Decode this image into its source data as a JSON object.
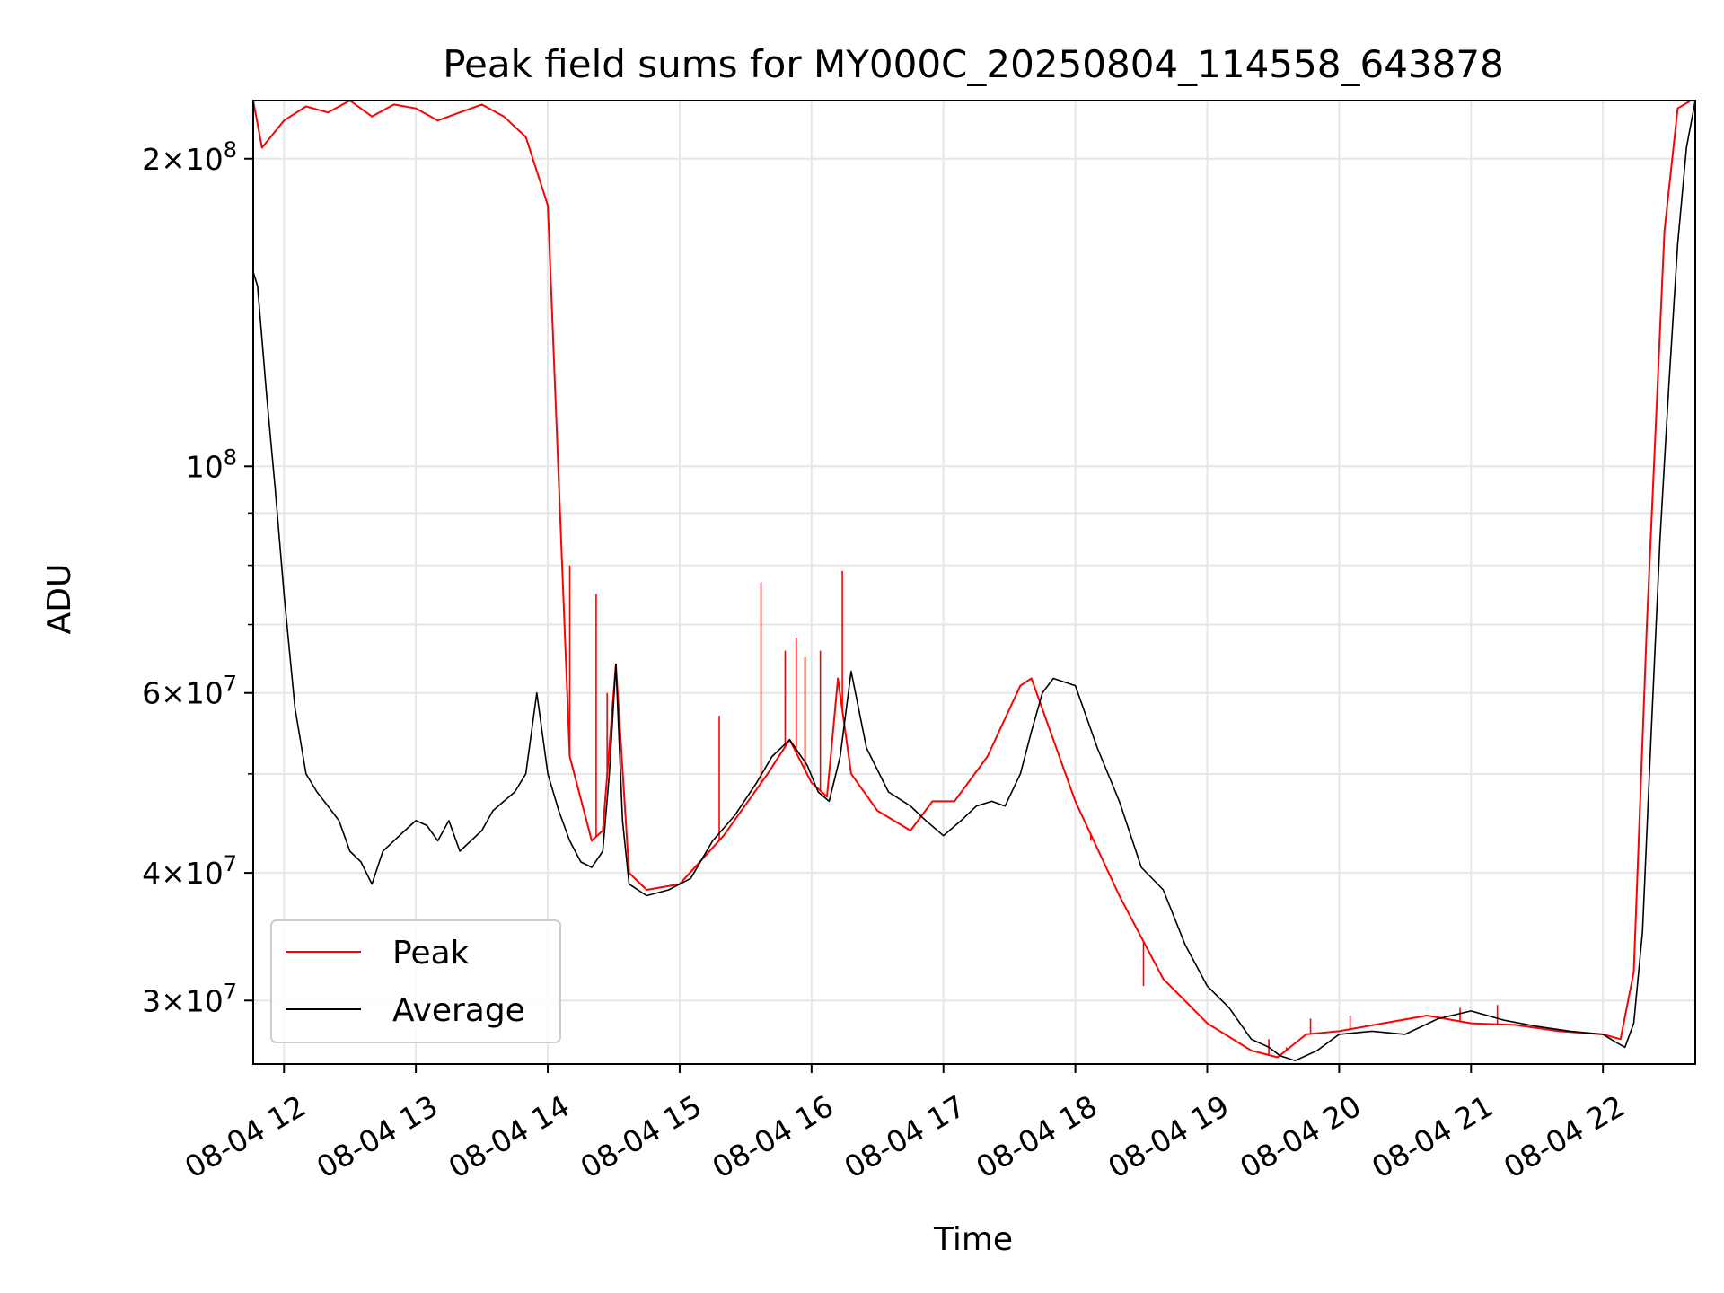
{
  "chart_data": {
    "type": "line",
    "title": "Peak field sums for MY000C_20250804_114558_643878",
    "xlabel": "Time",
    "ylabel": "ADU",
    "yscale": "log",
    "xlim": [
      "2025-08-04T11:46",
      "2025-08-04T22:42"
    ],
    "ylim": [
      26000000,
      228000000
    ],
    "grid": true,
    "legend_position": "lower-left",
    "x_ticks": [
      {
        "value": "2025-08-04T12:00",
        "label": "08-04 12"
      },
      {
        "value": "2025-08-04T13:00",
        "label": "08-04 13"
      },
      {
        "value": "2025-08-04T14:00",
        "label": "08-04 14"
      },
      {
        "value": "2025-08-04T15:00",
        "label": "08-04 15"
      },
      {
        "value": "2025-08-04T16:00",
        "label": "08-04 16"
      },
      {
        "value": "2025-08-04T17:00",
        "label": "08-04 17"
      },
      {
        "value": "2025-08-04T18:00",
        "label": "08-04 18"
      },
      {
        "value": "2025-08-04T19:00",
        "label": "08-04 19"
      },
      {
        "value": "2025-08-04T20:00",
        "label": "08-04 20"
      },
      {
        "value": "2025-08-04T21:00",
        "label": "08-04 21"
      },
      {
        "value": "2025-08-04T22:00",
        "label": "08-04 22"
      }
    ],
    "y_ticks_major": [
      {
        "value": 30000000,
        "mant": "3",
        "exp": "7"
      },
      {
        "value": 40000000,
        "mant": "4",
        "exp": "7"
      },
      {
        "value": 60000000,
        "mant": "6",
        "exp": "7"
      },
      {
        "value": 100000000,
        "mant": "",
        "exp": "8"
      },
      {
        "value": 200000000,
        "mant": "2",
        "exp": "8"
      }
    ],
    "y_ticks_minor": [
      50000000,
      70000000,
      80000000,
      90000000
    ],
    "series": [
      {
        "name": "Peak",
        "color": "#ff0000",
        "x": [
          "2025-08-04T11:46",
          "2025-08-04T11:50",
          "2025-08-04T12:00",
          "2025-08-04T12:10",
          "2025-08-04T12:20",
          "2025-08-04T12:30",
          "2025-08-04T12:40",
          "2025-08-04T12:50",
          "2025-08-04T13:00",
          "2025-08-04T13:10",
          "2025-08-04T13:20",
          "2025-08-04T13:30",
          "2025-08-04T13:40",
          "2025-08-04T13:50",
          "2025-08-04T14:00",
          "2025-08-04T14:10",
          "2025-08-04T14:20",
          "2025-08-04T14:25",
          "2025-08-04T14:31",
          "2025-08-04T14:37",
          "2025-08-04T14:45",
          "2025-08-04T15:00",
          "2025-08-04T15:20",
          "2025-08-04T15:40",
          "2025-08-04T15:50",
          "2025-08-04T16:00",
          "2025-08-04T16:07",
          "2025-08-04T16:12",
          "2025-08-04T16:18",
          "2025-08-04T16:30",
          "2025-08-04T16:45",
          "2025-08-04T16:55",
          "2025-08-04T17:05",
          "2025-08-04T17:20",
          "2025-08-04T17:35",
          "2025-08-04T17:40",
          "2025-08-04T17:50",
          "2025-08-04T18:00",
          "2025-08-04T18:20",
          "2025-08-04T18:40",
          "2025-08-04T19:00",
          "2025-08-04T19:20",
          "2025-08-04T19:32",
          "2025-08-04T19:45",
          "2025-08-04T20:00",
          "2025-08-04T20:20",
          "2025-08-04T20:40",
          "2025-08-04T21:00",
          "2025-08-04T21:20",
          "2025-08-04T21:40",
          "2025-08-04T22:00",
          "2025-08-04T22:08",
          "2025-08-04T22:14",
          "2025-08-04T22:20",
          "2025-08-04T22:28",
          "2025-08-04T22:34",
          "2025-08-04T22:40"
        ],
        "y": [
          228000000,
          205000000,
          218000000,
          225000000,
          222000000,
          228000000,
          220000000,
          226000000,
          224000000,
          218000000,
          222000000,
          226000000,
          220000000,
          210000000,
          180000000,
          52000000,
          43000000,
          44000000,
          64000000,
          40000000,
          38500000,
          39000000,
          43500000,
          50000000,
          54000000,
          49000000,
          47500000,
          62000000,
          50000000,
          46000000,
          44000000,
          47000000,
          47000000,
          52000000,
          61000000,
          62000000,
          54000000,
          47000000,
          38000000,
          31500000,
          28500000,
          26800000,
          26400000,
          27800000,
          28000000,
          28500000,
          29000000,
          28500000,
          28400000,
          28000000,
          27800000,
          27500000,
          32000000,
          70000000,
          170000000,
          224000000,
          228000000
        ],
        "spikes": [
          {
            "x": "2025-08-04T14:10",
            "y": 80000000
          },
          {
            "x": "2025-08-04T14:22",
            "y": 75000000
          },
          {
            "x": "2025-08-04T14:27",
            "y": 60000000
          },
          {
            "x": "2025-08-04T15:18",
            "y": 57000000
          },
          {
            "x": "2025-08-04T15:37",
            "y": 77000000
          },
          {
            "x": "2025-08-04T15:48",
            "y": 66000000
          },
          {
            "x": "2025-08-04T15:53",
            "y": 68000000
          },
          {
            "x": "2025-08-04T15:57",
            "y": 65000000
          },
          {
            "x": "2025-08-04T16:04",
            "y": 66000000
          },
          {
            "x": "2025-08-04T16:14",
            "y": 79000000
          },
          {
            "x": "2025-08-04T18:07",
            "y": 43000000
          },
          {
            "x": "2025-08-04T18:31",
            "y": 31000000
          },
          {
            "x": "2025-08-04T19:28",
            "y": 27500000
          },
          {
            "x": "2025-08-04T19:36",
            "y": 27000000
          },
          {
            "x": "2025-08-04T19:47",
            "y": 28800000
          },
          {
            "x": "2025-08-04T20:05",
            "y": 29000000
          },
          {
            "x": "2025-08-04T20:55",
            "y": 29500000
          },
          {
            "x": "2025-08-04T21:12",
            "y": 29700000
          }
        ]
      },
      {
        "name": "Average",
        "color": "#000000",
        "x": [
          "2025-08-04T11:46",
          "2025-08-04T11:48",
          "2025-08-04T11:52",
          "2025-08-04T11:56",
          "2025-08-04T12:00",
          "2025-08-04T12:05",
          "2025-08-04T12:10",
          "2025-08-04T12:15",
          "2025-08-04T12:20",
          "2025-08-04T12:25",
          "2025-08-04T12:30",
          "2025-08-04T12:35",
          "2025-08-04T12:40",
          "2025-08-04T12:45",
          "2025-08-04T12:50",
          "2025-08-04T12:55",
          "2025-08-04T13:00",
          "2025-08-04T13:05",
          "2025-08-04T13:10",
          "2025-08-04T13:15",
          "2025-08-04T13:20",
          "2025-08-04T13:25",
          "2025-08-04T13:30",
          "2025-08-04T13:35",
          "2025-08-04T13:40",
          "2025-08-04T13:45",
          "2025-08-04T13:50",
          "2025-08-04T13:55",
          "2025-08-04T14:00",
          "2025-08-04T14:05",
          "2025-08-04T14:10",
          "2025-08-04T14:15",
          "2025-08-04T14:20",
          "2025-08-04T14:25",
          "2025-08-04T14:28",
          "2025-08-04T14:31",
          "2025-08-04T14:34",
          "2025-08-04T14:37",
          "2025-08-04T14:45",
          "2025-08-04T14:55",
          "2025-08-04T15:05",
          "2025-08-04T15:15",
          "2025-08-04T15:25",
          "2025-08-04T15:35",
          "2025-08-04T15:42",
          "2025-08-04T15:50",
          "2025-08-04T15:58",
          "2025-08-04T16:03",
          "2025-08-04T16:08",
          "2025-08-04T16:13",
          "2025-08-04T16:18",
          "2025-08-04T16:25",
          "2025-08-04T16:35",
          "2025-08-04T16:45",
          "2025-08-04T16:52",
          "2025-08-04T17:00",
          "2025-08-04T17:08",
          "2025-08-04T17:15",
          "2025-08-04T17:22",
          "2025-08-04T17:28",
          "2025-08-04T17:35",
          "2025-08-04T17:40",
          "2025-08-04T17:45",
          "2025-08-04T17:50",
          "2025-08-04T18:00",
          "2025-08-04T18:10",
          "2025-08-04T18:20",
          "2025-08-04T18:30",
          "2025-08-04T18:40",
          "2025-08-04T18:50",
          "2025-08-04T19:00",
          "2025-08-04T19:10",
          "2025-08-04T19:20",
          "2025-08-04T19:28",
          "2025-08-04T19:33",
          "2025-08-04T19:40",
          "2025-08-04T19:50",
          "2025-08-04T20:00",
          "2025-08-04T20:15",
          "2025-08-04T20:30",
          "2025-08-04T20:45",
          "2025-08-04T21:00",
          "2025-08-04T21:15",
          "2025-08-04T21:30",
          "2025-08-04T21:45",
          "2025-08-04T22:00",
          "2025-08-04T22:06",
          "2025-08-04T22:10",
          "2025-08-04T22:14",
          "2025-08-04T22:18",
          "2025-08-04T22:22",
          "2025-08-04T22:26",
          "2025-08-04T22:30",
          "2025-08-04T22:34",
          "2025-08-04T22:38",
          "2025-08-04T22:42"
        ],
        "y": [
          155000000,
          150000000,
          118000000,
          95000000,
          75000000,
          58000000,
          50000000,
          48000000,
          46500000,
          45000000,
          42000000,
          41000000,
          39000000,
          42000000,
          43000000,
          44000000,
          45000000,
          44500000,
          43000000,
          45000000,
          42000000,
          43000000,
          44000000,
          46000000,
          47000000,
          48000000,
          50000000,
          60000000,
          50000000,
          46000000,
          43000000,
          41000000,
          40500000,
          42000000,
          50000000,
          64000000,
          45000000,
          39000000,
          38000000,
          38500000,
          39500000,
          43000000,
          45500000,
          49000000,
          52000000,
          54000000,
          51000000,
          48000000,
          47000000,
          52000000,
          63000000,
          53000000,
          48000000,
          46500000,
          45000000,
          43500000,
          45000000,
          46500000,
          47000000,
          46500000,
          50000000,
          55000000,
          60000000,
          62000000,
          61000000,
          53000000,
          47000000,
          40500000,
          38500000,
          34000000,
          31000000,
          29500000,
          27500000,
          27000000,
          26500000,
          26200000,
          26800000,
          27800000,
          28000000,
          27800000,
          28800000,
          29300000,
          28700000,
          28300000,
          28000000,
          27800000,
          27300000,
          27000000,
          28500000,
          35000000,
          55000000,
          85000000,
          120000000,
          165000000,
          205000000,
          228000000
        ]
      }
    ]
  }
}
